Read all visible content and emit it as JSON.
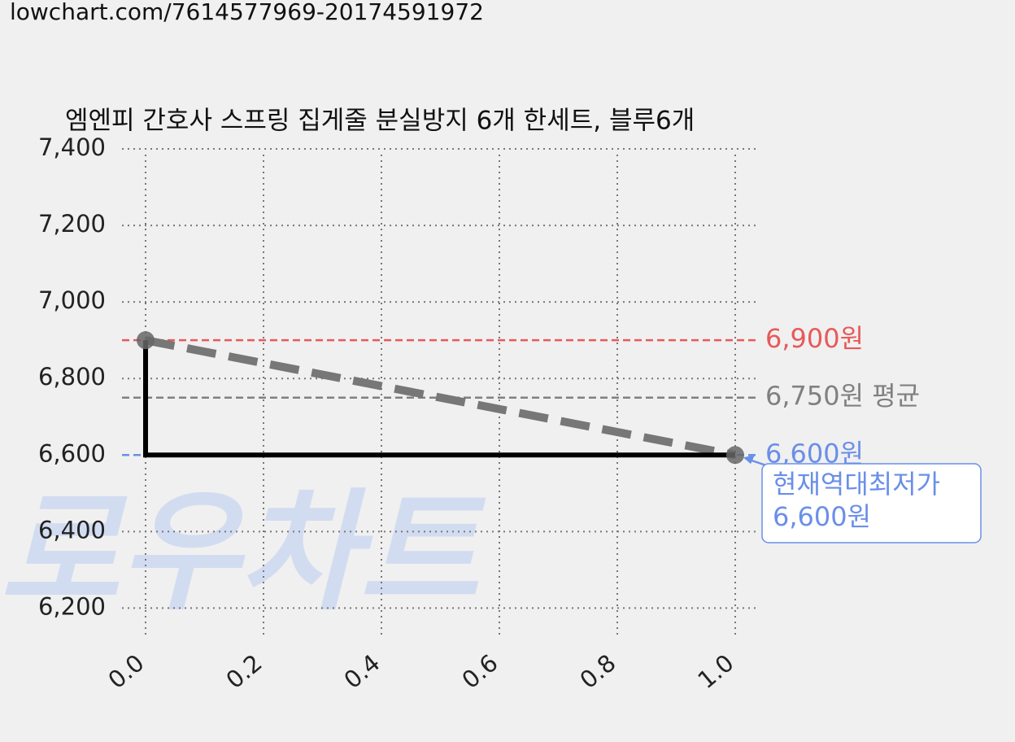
{
  "url": "lowchart.com/7614577969-20174591972",
  "watermark": "로우차트",
  "chart_data": {
    "type": "step",
    "title": "엠엔피 간호사 스프링 집게줄 분실방지 6개 한세트, 블루6개",
    "x": [
      0,
      1
    ],
    "series": [
      {
        "color": "#000000",
        "trend_color": "#777777",
        "marker_color": "#666666",
        "values": [
          6900,
          6600
        ]
      }
    ],
    "xlim": [
      -0.04,
      1.04
    ],
    "ylim": [
      6120,
      7400
    ],
    "xticks": [
      {
        "value": 0,
        "label": "0.0"
      },
      0.2,
      0.4,
      0.6,
      0.8,
      {
        "value": 1,
        "label": "1.0"
      }
    ],
    "yticks": [
      {
        "value": 6200,
        "label": "6,200"
      },
      {
        "value": 6400,
        "label": "6,400"
      },
      {
        "value": 6600,
        "label": "6,600"
      },
      {
        "value": 6800,
        "label": "6,800"
      },
      {
        "value": 7000,
        "label": "7,000"
      },
      {
        "value": 7200,
        "label": "7,200"
      },
      {
        "value": 7400,
        "label": "7,400"
      }
    ],
    "grid": true,
    "hlines": [
      {
        "value": 6900,
        "label": "6,900원",
        "color": "#e8595a"
      },
      {
        "value": 6750,
        "label": "6,750원 평균",
        "color": "#808080"
      },
      {
        "value": 6600,
        "label": "6,600원",
        "color": "#6a8fe8"
      }
    ],
    "annotation": {
      "lines": [
        "현재역대최저가",
        "6,600원"
      ],
      "color": "#6a8fe8"
    }
  }
}
